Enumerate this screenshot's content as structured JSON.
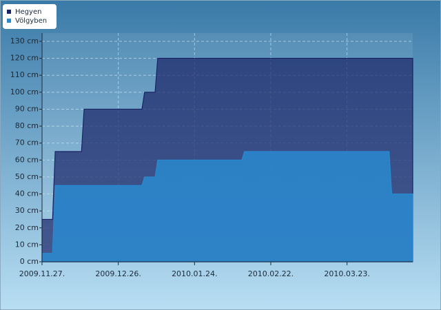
{
  "chart_data": {
    "type": "area",
    "x": [
      "2009-11-27",
      "2009-12-01",
      "2009-12-02",
      "2009-12-12",
      "2009-12-13",
      "2010-01-04",
      "2010-01-05",
      "2010-01-09",
      "2010-01-10",
      "2010-02-11",
      "2010-02-12",
      "2010-04-08",
      "2010-04-09",
      "2010-04-17"
    ],
    "series": [
      {
        "name": "Hegyen",
        "color": "#1a2366",
        "values": [
          25,
          25,
          65,
          65,
          90,
          90,
          100,
          100,
          120,
          120,
          120,
          120,
          120,
          120
        ]
      },
      {
        "name": "Völgyben",
        "color": "#2a8ad0",
        "values": [
          5,
          5,
          45,
          45,
          45,
          45,
          50,
          50,
          60,
          60,
          65,
          65,
          40,
          40
        ]
      }
    ],
    "xlim": [
      "2009-11-27",
      "2010-04-17"
    ],
    "xticks": [
      {
        "value": "2009-11-27",
        "label": "2009.11.27."
      },
      {
        "value": "2009-12-26",
        "label": "2009.12.26."
      },
      {
        "value": "2010-01-24",
        "label": "2010.01.24."
      },
      {
        "value": "2010-02-22",
        "label": "2010.02.22."
      },
      {
        "value": "2010-03-23",
        "label": "2010.03.23."
      }
    ],
    "ylim": [
      0,
      130
    ],
    "yticks": [
      {
        "value": 0,
        "label": "0 cm"
      },
      {
        "value": 10,
        "label": "10 cm"
      },
      {
        "value": 20,
        "label": "20 cm"
      },
      {
        "value": 30,
        "label": "30 cm"
      },
      {
        "value": 40,
        "label": "40 cm"
      },
      {
        "value": 50,
        "label": "50 cm"
      },
      {
        "value": 60,
        "label": "60 cm"
      },
      {
        "value": 70,
        "label": "70 cm"
      },
      {
        "value": 80,
        "label": "80 cm"
      },
      {
        "value": 90,
        "label": "90 cm"
      },
      {
        "value": 100,
        "label": "100 cm"
      },
      {
        "value": 110,
        "label": "110 cm"
      },
      {
        "value": 120,
        "label": "120 cm"
      },
      {
        "value": 130,
        "label": "130 cm"
      }
    ],
    "grid": true,
    "legend": "top-left"
  }
}
